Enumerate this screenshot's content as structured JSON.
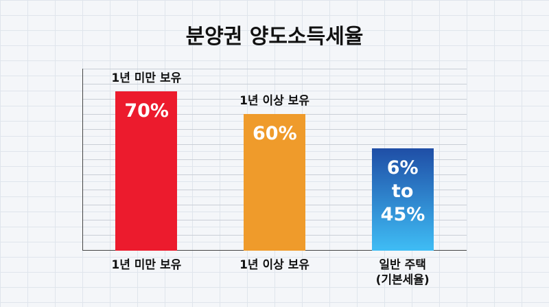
{
  "chart_data": {
    "type": "bar",
    "title": "분양권 양도소득세율",
    "categories": [
      "1년 미만 보유",
      "1년 이상 보유",
      "일반 주택\n(기본세율)"
    ],
    "annotations": [
      "1년 미만 보유",
      "1년 이상 보유"
    ],
    "values": [
      70,
      60,
      45
    ],
    "value_labels": [
      "70%",
      "60%",
      "6% to 45%"
    ],
    "colors": [
      "#ec1b2d",
      "#ef9b2b",
      "#1f4ea6"
    ],
    "ylim": [
      0,
      80
    ]
  }
}
